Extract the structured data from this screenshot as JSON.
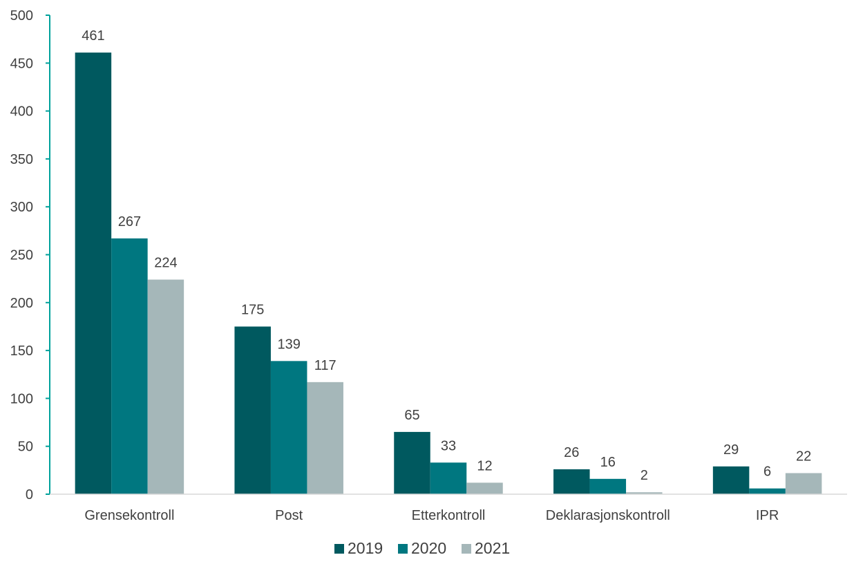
{
  "chart_data": {
    "type": "bar",
    "categories": [
      "Grensekontroll",
      "Post",
      "Etterkontroll",
      "Deklarasjonskontroll",
      "IPR"
    ],
    "series": [
      {
        "name": "2019",
        "color": "#00595f",
        "values": [
          461,
          175,
          65,
          26,
          29
        ]
      },
      {
        "name": "2020",
        "color": "#007780",
        "values": [
          267,
          139,
          33,
          16,
          6
        ]
      },
      {
        "name": "2021",
        "color": "#a5b7b9",
        "values": [
          224,
          117,
          12,
          2,
          22
        ]
      }
    ],
    "ylim": [
      0,
      500
    ],
    "yticks": [
      0,
      50,
      100,
      150,
      200,
      250,
      300,
      350,
      400,
      450,
      500
    ],
    "axis_color": "#00a19b",
    "legend_position": "bottom",
    "grid": false,
    "title": "",
    "xlabel": "",
    "ylabel": ""
  }
}
